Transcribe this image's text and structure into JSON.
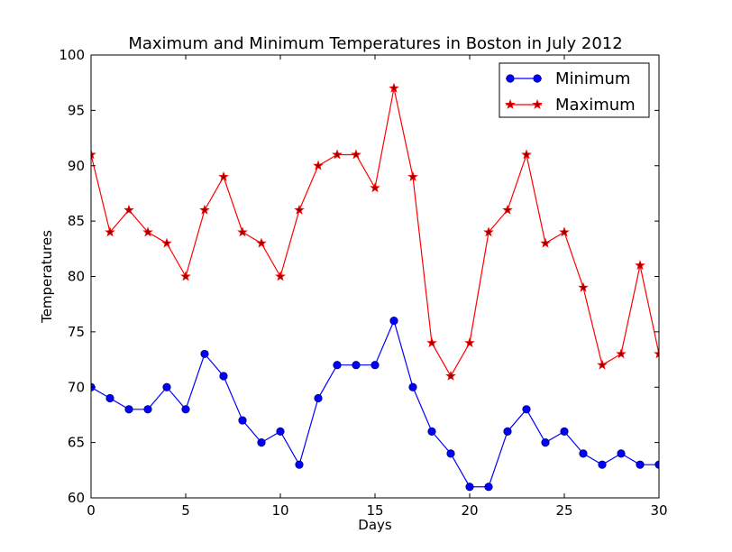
{
  "chart_data": {
    "type": "line",
    "title": "Maximum and Minimum Temperatures in Boston in July 2012",
    "xlabel": "Days",
    "ylabel": "Temperatures",
    "xlim": [
      0,
      30
    ],
    "ylim": [
      60,
      100
    ],
    "xticks": [
      0,
      5,
      10,
      15,
      20,
      25,
      30
    ],
    "yticks": [
      60,
      65,
      70,
      75,
      80,
      85,
      90,
      95,
      100
    ],
    "grid": false,
    "legend_position": "top-right",
    "x": [
      0,
      1,
      2,
      3,
      4,
      5,
      6,
      7,
      8,
      9,
      10,
      11,
      12,
      13,
      14,
      15,
      16,
      17,
      18,
      19,
      20,
      21,
      22,
      23,
      24,
      25,
      26,
      27,
      28,
      29,
      30
    ],
    "series": [
      {
        "name": "Minimum",
        "color": "#0000ff",
        "marker": "circle",
        "values": [
          70,
          69,
          68,
          68,
          70,
          68,
          73,
          71,
          67,
          65,
          66,
          63,
          69,
          72,
          72,
          72,
          76,
          70,
          66,
          64,
          61,
          61,
          66,
          68,
          65,
          66,
          64,
          63,
          64,
          63,
          63
        ]
      },
      {
        "name": "Maximum",
        "color": "#ff0000",
        "marker": "star",
        "values": [
          91,
          84,
          86,
          84,
          83,
          80,
          86,
          89,
          84,
          83,
          80,
          86,
          90,
          91,
          91,
          88,
          97,
          89,
          74,
          71,
          74,
          84,
          86,
          91,
          83,
          84,
          79,
          72,
          73,
          81,
          73
        ]
      }
    ]
  }
}
